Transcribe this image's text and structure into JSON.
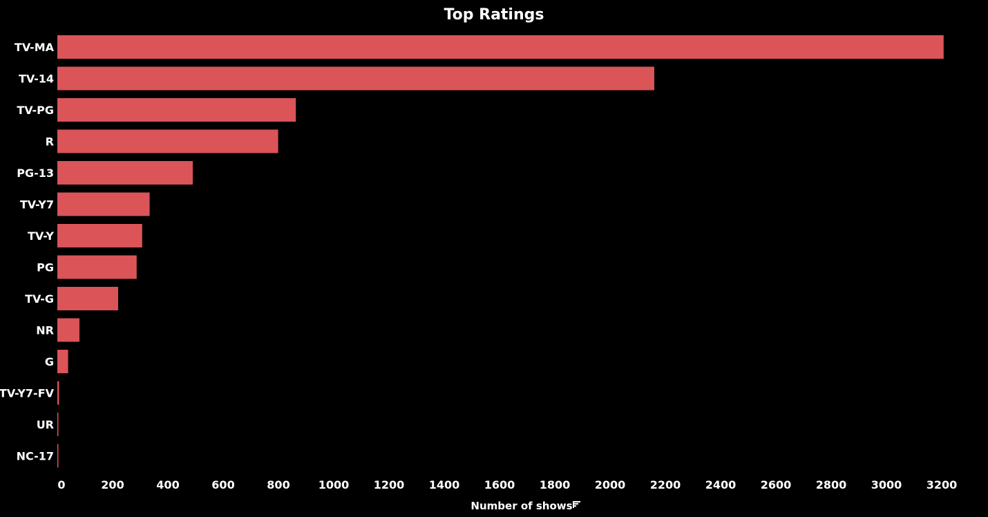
{
  "chart_data": {
    "type": "bar",
    "orientation": "horizontal",
    "title": "Top Ratings",
    "xlabel": "Number of shows",
    "ylabel": "",
    "categories": [
      "TV-MA",
      "TV-14",
      "TV-PG",
      "R",
      "PG-13",
      "TV-Y7",
      "TV-Y",
      "PG",
      "TV-G",
      "NR",
      "G",
      "TV-Y7-FV",
      "UR",
      "NC-17"
    ],
    "values": [
      3207,
      2160,
      863,
      799,
      490,
      334,
      307,
      287,
      220,
      80,
      39,
      6,
      3,
      3
    ],
    "xlim": [
      0,
      3200
    ],
    "xticks": [
      0,
      200,
      400,
      600,
      800,
      1000,
      1200,
      1400,
      1600,
      1800,
      2000,
      2200,
      2400,
      2600,
      2800,
      3000,
      3200
    ],
    "grid": false,
    "legend": "none",
    "sort_icon": "sort-descending-icon",
    "bar_color": "#DA5458",
    "background_color": "#000000",
    "text_color": "#FFFFFF"
  }
}
